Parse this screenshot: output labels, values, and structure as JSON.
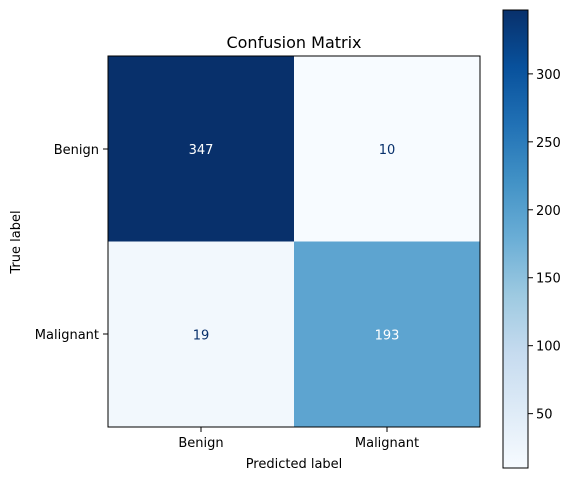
{
  "chart_data": {
    "type": "heatmap",
    "title": "Confusion Matrix",
    "xlabel": "Predicted label",
    "ylabel": "True label",
    "x_categories": [
      "Benign",
      "Malignant"
    ],
    "y_categories": [
      "Benign",
      "Malignant"
    ],
    "matrix": [
      [
        347,
        10
      ],
      [
        19,
        193
      ]
    ],
    "colormap": "Blues",
    "color_range": [
      10,
      347
    ],
    "colorbar_ticks": [
      50,
      100,
      150,
      200,
      250,
      300
    ],
    "colorbar_tick_labels": [
      "50",
      "100",
      "150",
      "200",
      "250",
      "300"
    ],
    "colors": {
      "min": "#f7fbff",
      "max": "#08306b",
      "text_on_dark": "#ffffff",
      "text_on_light": "#08306b"
    }
  }
}
